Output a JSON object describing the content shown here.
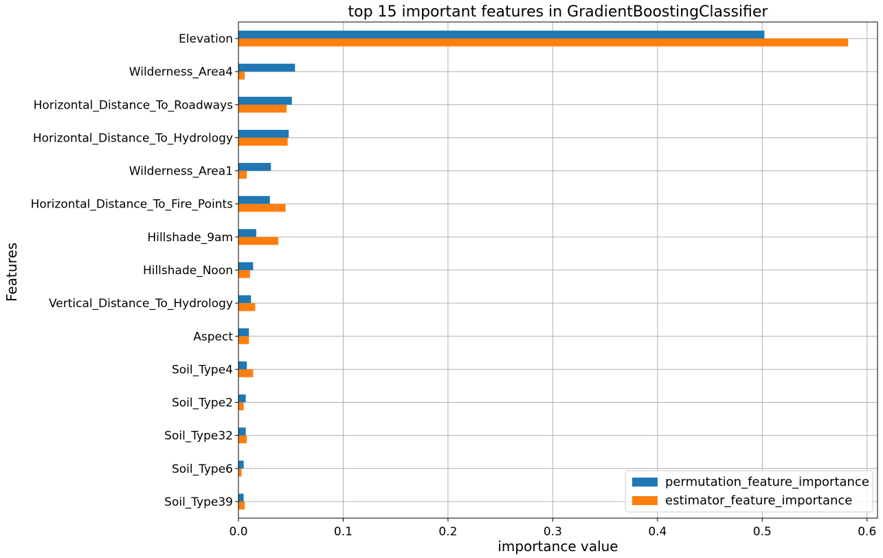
{
  "chart_data": {
    "type": "bar",
    "orientation": "horizontal",
    "title": "top 15 important features in GradientBoostingClassifier",
    "xlabel": "importance value",
    "ylabel": "Features",
    "xlim": [
      0,
      0.61
    ],
    "xticks": [
      0.0,
      0.1,
      0.2,
      0.3,
      0.4,
      0.5,
      0.6
    ],
    "xtick_labels": [
      "0.0",
      "0.1",
      "0.2",
      "0.3",
      "0.4",
      "0.5",
      "0.6"
    ],
    "grid": true,
    "legend_position": "lower-right",
    "categories": [
      "Elevation",
      "Wilderness_Area4",
      "Horizontal_Distance_To_Roadways",
      "Horizontal_Distance_To_Hydrology",
      "Wilderness_Area1",
      "Horizontal_Distance_To_Fire_Points",
      "Hillshade_9am",
      "Hillshade_Noon",
      "Vertical_Distance_To_Hydrology",
      "Aspect",
      "Soil_Type4",
      "Soil_Type2",
      "Soil_Type32",
      "Soil_Type6",
      "Soil_Type39"
    ],
    "series": [
      {
        "name": "permutation_feature_importance",
        "color": "#1f77b4",
        "values": [
          0.502,
          0.054,
          0.051,
          0.048,
          0.031,
          0.03,
          0.017,
          0.014,
          0.012,
          0.01,
          0.008,
          0.007,
          0.007,
          0.005,
          0.005
        ]
      },
      {
        "name": "estimator_feature_importance",
        "color": "#ff7f0e",
        "values": [
          0.582,
          0.006,
          0.046,
          0.047,
          0.008,
          0.045,
          0.038,
          0.011,
          0.016,
          0.01,
          0.014,
          0.005,
          0.008,
          0.003,
          0.006
        ]
      }
    ]
  }
}
